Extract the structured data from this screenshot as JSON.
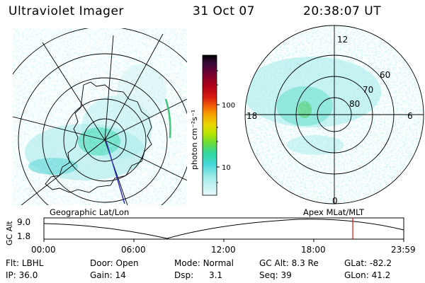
{
  "header": {
    "title": "Ultraviolet Imager",
    "date": "31 Oct 07",
    "time": "20:38:07 UT"
  },
  "colorbar": {
    "unit_label": "photon cm⁻²s⁻¹",
    "ticks": [
      "100",
      "10"
    ],
    "colors": [
      "#000000",
      "#3a0a3a",
      "#7a0030",
      "#b00018",
      "#d81c10",
      "#f05a08",
      "#f6a000",
      "#e8d800",
      "#b8e400",
      "#70dc30",
      "#30d8a0",
      "#48d8d8",
      "#a8ecec",
      "#e8f8f8"
    ]
  },
  "polar_grid": {
    "mlt_labels": {
      "top": "12",
      "left": "18",
      "right": "6",
      "bottom": "0"
    },
    "lat_labels": [
      "60",
      "70",
      "80"
    ]
  },
  "panel_labels": {
    "left": "Geographic Lat/Lon",
    "right": "Apex MLat/MLT"
  },
  "altitude_plot": {
    "axis_label": "GC Alt",
    "y_ticks": [
      "9.0",
      "1.8"
    ],
    "x_ticks": [
      "00:00",
      "06:00",
      "12:00",
      "18:00",
      "23:59"
    ],
    "marker_time": "20:38",
    "marker_color": "#e01010"
  },
  "info": {
    "flt_label": "Flt:",
    "flt_value": "LBHL",
    "ip_label": "IP:",
    "ip_value": "36.0",
    "door_label": "Door:",
    "door_value": "Open",
    "gain_label": "Gain:",
    "gain_value": "14",
    "mode_label": "Mode:",
    "mode_value": "Normal",
    "dsp_label": "Dsp:",
    "dsp_value": "3.1",
    "gcalt_label": "GC Alt:",
    "gcalt_value": "8.3 Re",
    "seq_label": "Seq:",
    "seq_value": "39",
    "glat_label": "GLat:",
    "glat_value": "-82.2",
    "glon_label": "GLon:",
    "glon_value": "41.2"
  }
}
